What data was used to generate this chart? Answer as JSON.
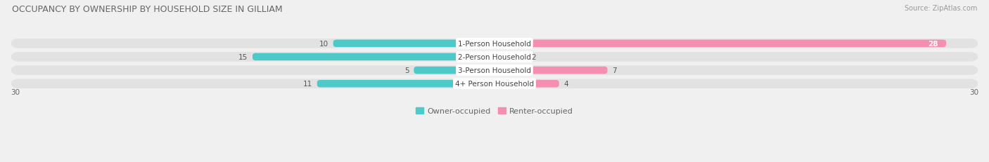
{
  "title": "OCCUPANCY BY OWNERSHIP BY HOUSEHOLD SIZE IN GILLIAM",
  "source": "Source: ZipAtlas.com",
  "categories": [
    "1-Person Household",
    "2-Person Household",
    "3-Person Household",
    "4+ Person Household"
  ],
  "owner_values": [
    10,
    15,
    5,
    11
  ],
  "renter_values": [
    28,
    2,
    7,
    4
  ],
  "owner_color": "#4ec9c9",
  "renter_color": "#f48fb1",
  "axis_max": 30,
  "background_color": "#f0f0f0",
  "bar_background": "#e2e2e2",
  "title_fontsize": 9,
  "label_fontsize": 7.5,
  "value_fontsize": 7.5,
  "legend_fontsize": 8
}
